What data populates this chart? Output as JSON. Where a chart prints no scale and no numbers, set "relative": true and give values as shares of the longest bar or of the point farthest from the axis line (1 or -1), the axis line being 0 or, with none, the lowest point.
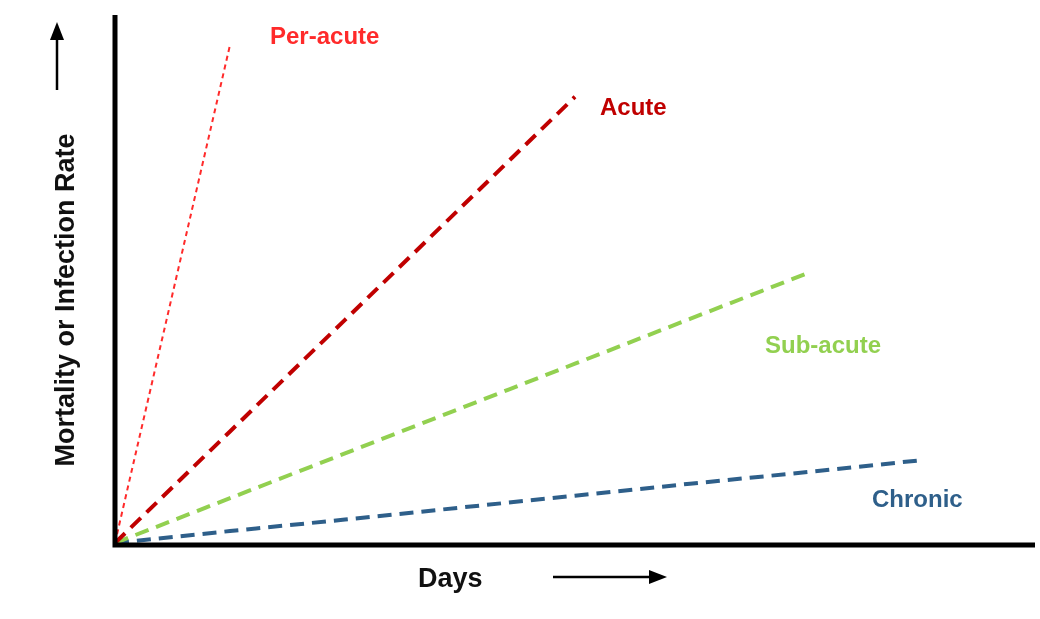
{
  "chart_data": {
    "type": "line",
    "relative": true,
    "xlabel": "Days",
    "ylabel": "Mortality or Infection Rate",
    "marker": "none",
    "categories": [
      null,
      null,
      null,
      null,
      null,
      null,
      null,
      null,
      null
    ],
    "series": [
      {
        "name": "Per-acute",
        "color": "#ff2a2a",
        "line_style": "dotted",
        "values": [
          0,
          1,
          null,
          null,
          null,
          null,
          null,
          null,
          null
        ]
      },
      {
        "name": "Acute",
        "color": "#c00000",
        "line_style": "dashed",
        "values": [
          0,
          0.224,
          0.448,
          0.672,
          0.896,
          null,
          null,
          null,
          null
        ]
      },
      {
        "name": "Sub-acute",
        "color": "#92d050",
        "line_style": "dashed",
        "values": [
          0,
          0.09,
          0.18,
          0.27,
          0.36,
          0.45,
          0.54,
          null,
          null
        ]
      },
      {
        "name": "Chronic",
        "color": "#2e5f8a",
        "line_style": "dashed",
        "values": [
          0,
          0.024,
          0.047,
          0.071,
          0.095,
          0.119,
          0.142,
          0.166,
          null
        ]
      }
    ]
  }
}
